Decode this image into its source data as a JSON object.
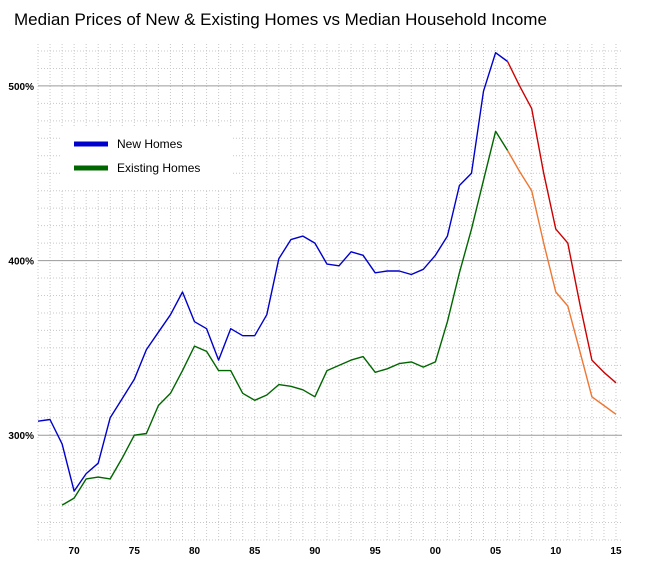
{
  "chart_data": {
    "type": "line",
    "title": "Median Prices of New & Existing Homes vs Median Household Income",
    "xlabel": "",
    "ylabel": "",
    "xlim": [
      1967,
      2015.5
    ],
    "ylim": [
      240,
      524
    ],
    "x_ticks": [
      {
        "value": 1970,
        "label": "70"
      },
      {
        "value": 1975,
        "label": "75"
      },
      {
        "value": 1980,
        "label": "80"
      },
      {
        "value": 1985,
        "label": "85"
      },
      {
        "value": 1990,
        "label": "90"
      },
      {
        "value": 1995,
        "label": "95"
      },
      {
        "value": 2000,
        "label": "00"
      },
      {
        "value": 2005,
        "label": "05"
      },
      {
        "value": 2010,
        "label": "10"
      },
      {
        "value": 2015,
        "label": "15"
      }
    ],
    "y_ticks": [
      {
        "value": 300,
        "label": "300%"
      },
      {
        "value": 400,
        "label": "400%"
      },
      {
        "value": 500,
        "label": "500%"
      }
    ],
    "grid": true,
    "legend_position": "top-left",
    "series": [
      {
        "name": "New Homes",
        "color": "#0000cc",
        "forecast_color": "#cc0000",
        "forecast_from_x": 2006,
        "x": [
          1967,
          1968,
          1969,
          1970,
          1971,
          1972,
          1973,
          1974,
          1975,
          1976,
          1977,
          1978,
          1979,
          1980,
          1981,
          1982,
          1983,
          1984,
          1985,
          1986,
          1987,
          1988,
          1989,
          1990,
          1991,
          1992,
          1993,
          1994,
          1995,
          1996,
          1997,
          1998,
          1999,
          2000,
          2001,
          2002,
          2003,
          2004,
          2005,
          2006,
          2007,
          2008,
          2009,
          2010,
          2011,
          2012,
          2013,
          2014,
          2015
        ],
        "values": [
          308,
          309,
          295,
          268,
          278,
          284,
          310,
          321,
          332,
          349,
          359,
          369,
          382,
          365,
          361,
          343,
          361,
          357,
          357,
          369,
          401,
          412,
          414,
          410,
          398,
          397,
          405,
          403,
          393,
          394,
          394,
          392,
          395,
          403,
          414,
          443,
          450,
          497,
          519,
          514,
          500,
          487,
          450,
          418,
          410,
          375,
          343,
          336,
          330
        ]
      },
      {
        "name": "Existing Homes",
        "color": "#006600",
        "forecast_color": "#ee7733",
        "forecast_from_x": 2006,
        "x": [
          1969,
          1970,
          1971,
          1972,
          1973,
          1974,
          1975,
          1976,
          1977,
          1978,
          1979,
          1980,
          1981,
          1982,
          1983,
          1984,
          1985,
          1986,
          1987,
          1988,
          1989,
          1990,
          1991,
          1992,
          1993,
          1994,
          1995,
          1996,
          1997,
          1998,
          1999,
          2000,
          2001,
          2002,
          2003,
          2004,
          2005,
          2006,
          2007,
          2008,
          2009,
          2010,
          2011,
          2012,
          2013,
          2014,
          2015
        ],
        "values": [
          260,
          264,
          275,
          276,
          275,
          287,
          300,
          301,
          317,
          324,
          337,
          351,
          348,
          337,
          337,
          324,
          320,
          323,
          329,
          328,
          326,
          322,
          337,
          340,
          343,
          345,
          336,
          338,
          341,
          342,
          339,
          342,
          365,
          393,
          418,
          446,
          474,
          463,
          451,
          440,
          410,
          382,
          374,
          348,
          322,
          317,
          312
        ]
      }
    ]
  }
}
